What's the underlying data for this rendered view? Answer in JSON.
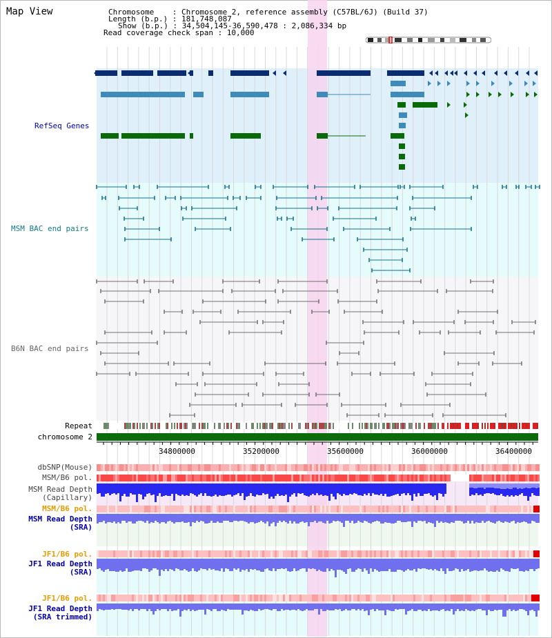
{
  "page": {
    "title": "Map View"
  },
  "info": {
    "chromosome": "Chromosome    : Chromosome 2, reference assembly (C57BL/6J) (Build 37)",
    "length": "Length (b.p.) : 181,748,087",
    "show": "Show (b.p.) : 34,504,145-36,590,478 : 2,086,334 bp",
    "coverage": "Read coverage check span : 10,000"
  },
  "tracks": {
    "refseq": "RefSeq Genes",
    "msm_bac": "MSM BAC end pairs",
    "b6n_bac": "B6N BAC end pairs",
    "repeat": "Repeat",
    "chromosome": "chromosome 2",
    "dbsnp": "dbSNP(Mouse)",
    "msm_pol": "MSM/B6 pol.",
    "msm_depth_cap_1": "MSM Read Depth",
    "msm_depth_cap_2": "(Capillary)",
    "msm_pol2": "MSM/B6 pol.",
    "msm_depth_sra_1": "MSM Read Depth",
    "msm_depth_sra_2": "(SRA)",
    "jf1_pol": "JF1/B6 pol.",
    "jf1_depth_sra_1": "JF1 Read Depth",
    "jf1_depth_sra_2": "(SRA)",
    "jf1_pol2": "JF1/B6 pol.",
    "jf1_depth_trim_1": "JF1 Read Depth",
    "jf1_depth_trim_2": "(SRA trimmed)"
  },
  "ruler": {
    "ticks": [
      "34800000",
      "35200000",
      "35600000",
      "36000000",
      "36400000"
    ]
  },
  "colors": {
    "refseq_bg": "#dff0fa",
    "msm_bg": "#e6fbfb",
    "b6n_bg": "#f6f6f9",
    "highlight": "#f7d4ef",
    "gene_dark": "#0b2c6e",
    "gene_light": "#3e8ab8",
    "gene_green": "#0a6a0a",
    "msm_line": "#136c88",
    "b6n_line": "#707070",
    "chrom_bar": "#0c6c0c",
    "snp": "#f5a0a0",
    "pol": "#ff4040",
    "depth_blue": "#2828f0",
    "depth_violet": "#7070ee",
    "label_blue": "#0000aa",
    "label_orange": "#e69b00",
    "label_teal": "#117a8a"
  }
}
